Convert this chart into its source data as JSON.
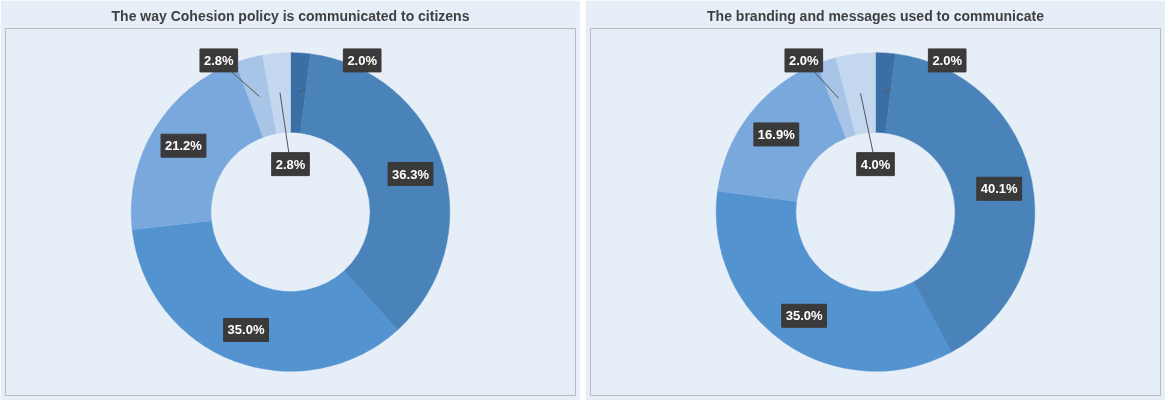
{
  "chart_data": [
    {
      "type": "donut",
      "title": "The way Cohesion policy is communicated to citizens",
      "categories": [
        null,
        null,
        null,
        null,
        null,
        null
      ],
      "values": [
        2.0,
        36.3,
        35.0,
        21.2,
        2.8,
        2.8
      ],
      "value_labels": [
        "2.0%",
        "36.3%",
        "35.0%",
        "21.2%",
        "2.8%",
        "2.8%"
      ],
      "colors": [
        "#3a6fa6",
        "#4a83ba",
        "#5393d0",
        "#79a9dc",
        "#a8c5e8",
        "#c3d7ef"
      ]
    },
    {
      "type": "donut",
      "title": "The branding and messages used to communicate",
      "categories": [
        null,
        null,
        null,
        null,
        null,
        null
      ],
      "values": [
        2.0,
        40.1,
        35.0,
        16.9,
        2.0,
        4.0
      ],
      "value_labels": [
        "2.0%",
        "40.1%",
        "35.0%",
        "16.9%",
        "2.0%",
        "4.0%"
      ],
      "colors": [
        "#3a6fa6",
        "#4a83ba",
        "#5393d0",
        "#79a9dc",
        "#a8c5e8",
        "#c3d7ef"
      ]
    }
  ]
}
